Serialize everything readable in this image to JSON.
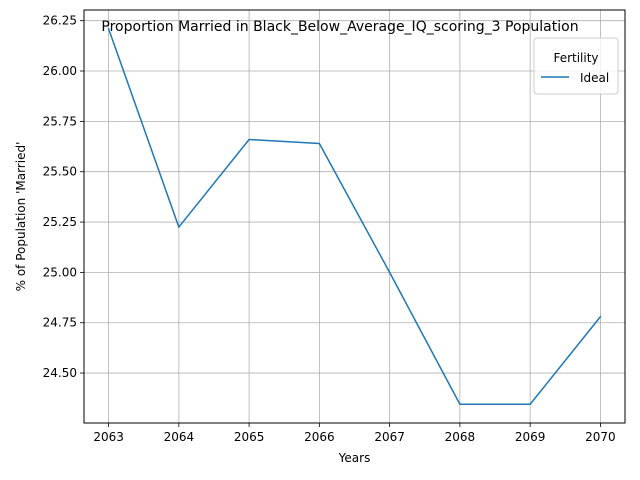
{
  "chart_data": {
    "type": "line",
    "title": "Proportion Married in Black_Below_Average_IQ_scoring_3 Population",
    "xlabel": "Years",
    "ylabel": "% of Population 'Married'",
    "x": [
      2063,
      2064,
      2065,
      2066,
      2067,
      2068,
      2069,
      2070
    ],
    "series": [
      {
        "name": "Ideal",
        "color": "#1f77b4",
        "values": [
          26.21,
          25.225,
          25.66,
          25.64,
          25.0,
          24.345,
          24.345,
          24.78
        ]
      }
    ],
    "xticks": [
      "2063",
      "2064",
      "2065",
      "2066",
      "2067",
      "2068",
      "2069",
      "2070"
    ],
    "yticks": [
      "24.50",
      "24.75",
      "25.00",
      "25.25",
      "25.50",
      "25.75",
      "26.00",
      "26.25"
    ],
    "ytick_values": [
      24.5,
      24.75,
      25.0,
      25.25,
      25.5,
      25.75,
      26.0,
      26.25
    ],
    "xlim": [
      2062.65,
      2070.35
    ],
    "ylim": [
      24.252,
      26.303
    ],
    "grid": true,
    "legend": {
      "title": "Fertility",
      "placement": "top-right"
    }
  }
}
